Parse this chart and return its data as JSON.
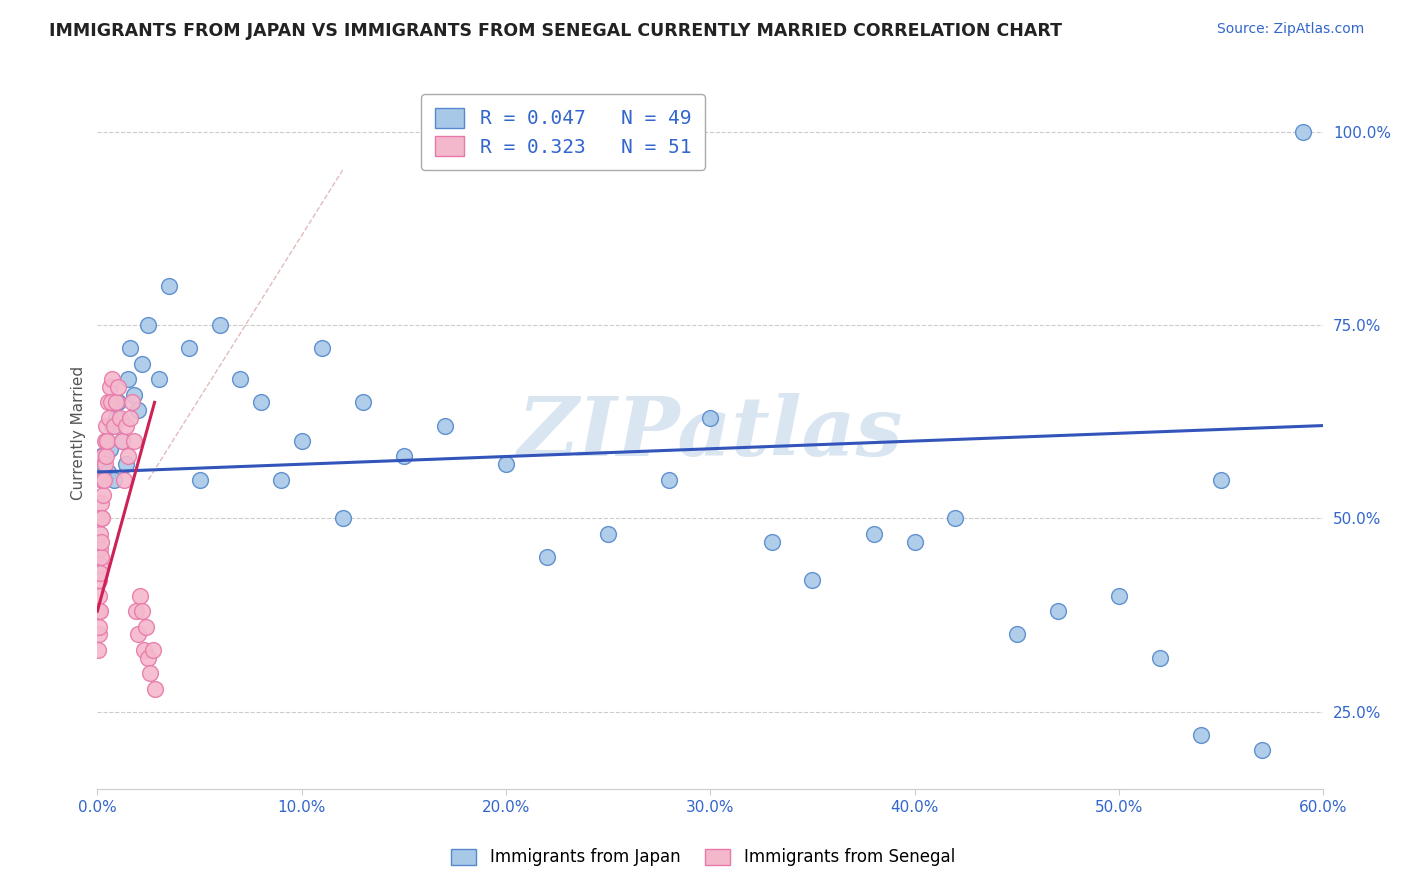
{
  "title": "IMMIGRANTS FROM JAPAN VS IMMIGRANTS FROM SENEGAL CURRENTLY MARRIED CORRELATION CHART",
  "source": "Source: ZipAtlas.com",
  "ylabel": "Currently Married",
  "x_tick_labels": [
    "0.0%",
    "10.0%",
    "20.0%",
    "30.0%",
    "40.0%",
    "50.0%",
    "60.0%"
  ],
  "x_tick_values": [
    0.0,
    10.0,
    20.0,
    30.0,
    40.0,
    50.0,
    60.0
  ],
  "y_tick_labels": [
    "25.0%",
    "50.0%",
    "75.0%",
    "100.0%"
  ],
  "y_tick_values": [
    25.0,
    50.0,
    75.0,
    100.0
  ],
  "xlim": [
    0.0,
    60.0
  ],
  "ylim": [
    15.0,
    107.0
  ],
  "japan_color": "#a8c8e8",
  "japan_edge_color": "#5588cc",
  "senegal_color": "#f4b8cc",
  "senegal_edge_color": "#e878a8",
  "japan_R": 0.047,
  "japan_N": 49,
  "senegal_R": 0.323,
  "senegal_N": 51,
  "trend_japan_color": "#3355bb",
  "trend_senegal_color": "#cc2255",
  "diag_line_color": "#ddaaaa",
  "grid_color": "#cccccc",
  "watermark": "ZIPatlas",
  "watermark_color": "#c0d5e8",
  "legend_label_japan": "Immigrants from Japan",
  "legend_label_senegal": "Immigrants from Senegal",
  "japan_x": [
    0.2,
    0.3,
    0.4,
    0.5,
    0.6,
    0.7,
    0.8,
    0.9,
    1.0,
    1.2,
    1.4,
    1.5,
    1.6,
    1.8,
    2.0,
    2.2,
    2.5,
    3.0,
    3.5,
    4.5,
    5.0,
    6.0,
    7.0,
    8.0,
    9.0,
    10.0,
    11.0,
    12.0,
    13.0,
    15.0,
    17.0,
    20.0,
    22.0,
    25.0,
    28.0,
    30.0,
    33.0,
    35.0,
    38.0,
    40.0,
    42.0,
    45.0,
    47.0,
    50.0,
    52.0,
    54.0,
    55.0,
    57.0,
    59.0
  ],
  "japan_y": [
    58.0,
    57.0,
    60.0,
    56.0,
    59.0,
    62.0,
    55.0,
    63.0,
    65.0,
    60.0,
    57.0,
    68.0,
    72.0,
    66.0,
    64.0,
    70.0,
    75.0,
    68.0,
    80.0,
    72.0,
    55.0,
    75.0,
    68.0,
    65.0,
    55.0,
    60.0,
    72.0,
    50.0,
    65.0,
    58.0,
    62.0,
    57.0,
    45.0,
    48.0,
    55.0,
    63.0,
    47.0,
    42.0,
    48.0,
    47.0,
    50.0,
    35.0,
    38.0,
    40.0,
    32.0,
    22.0,
    55.0,
    20.0,
    100.0
  ],
  "senegal_x": [
    0.05,
    0.06,
    0.07,
    0.08,
    0.09,
    0.1,
    0.11,
    0.12,
    0.13,
    0.14,
    0.15,
    0.16,
    0.17,
    0.18,
    0.2,
    0.22,
    0.25,
    0.28,
    0.3,
    0.33,
    0.35,
    0.38,
    0.4,
    0.42,
    0.45,
    0.5,
    0.55,
    0.6,
    0.65,
    0.7,
    0.8,
    0.9,
    1.0,
    1.1,
    1.2,
    1.3,
    1.4,
    1.5,
    1.6,
    1.7,
    1.8,
    1.9,
    2.0,
    2.1,
    2.2,
    2.3,
    2.4,
    2.5,
    2.6,
    2.7,
    2.8
  ],
  "senegal_y": [
    33.0,
    35.0,
    38.0,
    36.0,
    40.0,
    42.0,
    38.0,
    44.0,
    46.0,
    43.0,
    48.0,
    45.0,
    50.0,
    47.0,
    52.0,
    55.0,
    50.0,
    53.0,
    58.0,
    55.0,
    57.0,
    60.0,
    58.0,
    62.0,
    60.0,
    65.0,
    63.0,
    67.0,
    65.0,
    68.0,
    62.0,
    65.0,
    67.0,
    63.0,
    60.0,
    55.0,
    62.0,
    58.0,
    63.0,
    65.0,
    60.0,
    38.0,
    35.0,
    40.0,
    38.0,
    33.0,
    36.0,
    32.0,
    30.0,
    33.0,
    28.0
  ],
  "japan_trend_x0": 0.0,
  "japan_trend_x1": 60.0,
  "japan_trend_y0": 56.0,
  "japan_trend_y1": 62.0,
  "senegal_trend_x0": 0.0,
  "senegal_trend_x1": 2.8,
  "senegal_trend_y0": 38.0,
  "senegal_trend_y1": 65.0,
  "diag_x0": 2.5,
  "diag_y0": 55.0,
  "diag_x1": 12.0,
  "diag_y1": 95.0
}
